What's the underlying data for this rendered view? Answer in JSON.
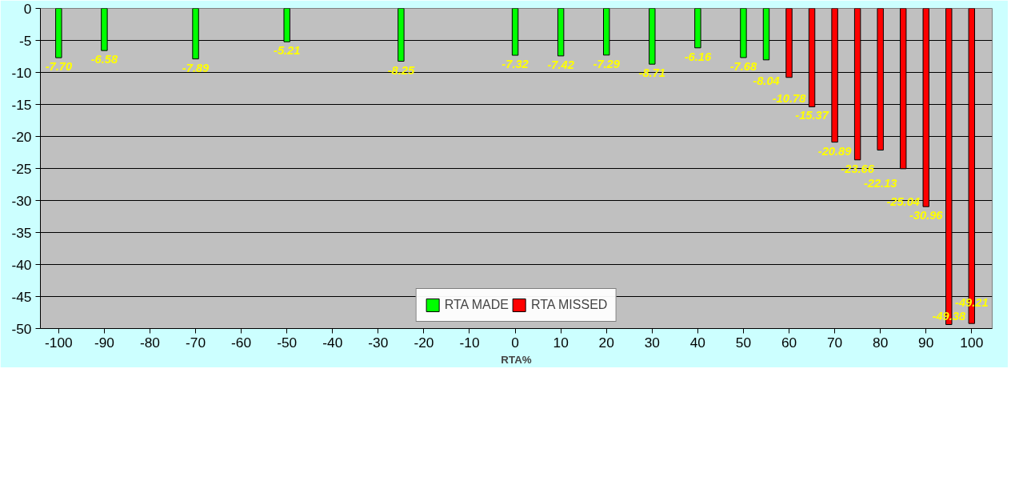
{
  "chart_data": {
    "type": "bar",
    "xlabel": "RTA%",
    "xlim": [
      -104,
      104.5
    ],
    "xticks": [
      -100,
      -90,
      -80,
      -70,
      -60,
      -50,
      -40,
      -30,
      -20,
      -10,
      0,
      10,
      20,
      30,
      40,
      50,
      60,
      70,
      80,
      90,
      100
    ],
    "ylim": [
      -50,
      0
    ],
    "yticks": [
      0,
      -5,
      -10,
      -15,
      -20,
      -25,
      -30,
      -35,
      -40,
      -45,
      -50
    ],
    "grid": "y",
    "legend": "bottom",
    "series": [
      {
        "name": "RTA MADE",
        "color": "#00ff00",
        "x": [
          -100,
          -90,
          -70,
          -50,
          -25,
          0,
          10,
          20,
          30,
          40,
          50,
          55
        ],
        "values": [
          -7.7,
          -6.58,
          -7.89,
          -5.21,
          -8.25,
          -7.32,
          -7.42,
          -7.29,
          -8.71,
          -6.16,
          -7.68,
          -8.04
        ],
        "value_labels": [
          "-7.70",
          "-6.58",
          "-7.89",
          "-5.21",
          "-8.25",
          "-7.32",
          "-7.42",
          "-7.29",
          "-8.71",
          "-6.16",
          "-7.68",
          "-8.04"
        ]
      },
      {
        "name": "RTA MISSED",
        "color": "#ff0000",
        "x": [
          60,
          65,
          70,
          75,
          80,
          85,
          90,
          95,
          100
        ],
        "values": [
          -10.78,
          -15.37,
          -20.89,
          -23.66,
          -22.13,
          -25.04,
          -30.96,
          -49.38,
          -49.21
        ],
        "value_labels": [
          "-10.78",
          "-15.37",
          "-20.89",
          "-23.66",
          "-22.13",
          "-25.04",
          "-30.96",
          "-49.38",
          "-49.21"
        ]
      }
    ]
  }
}
